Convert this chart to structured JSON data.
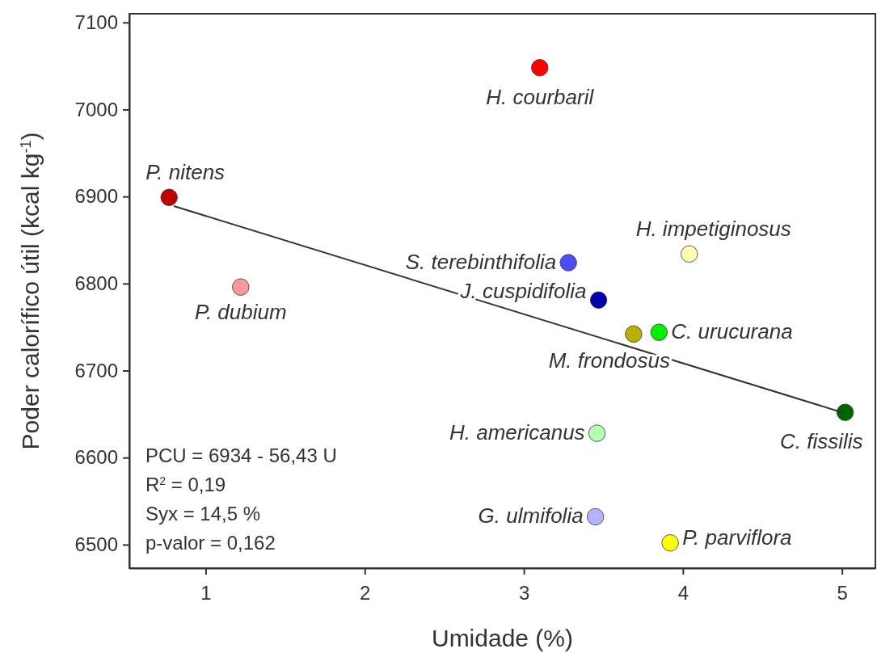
{
  "chart_data": {
    "type": "scatter",
    "xlabel": "Umidade (%)",
    "ylabel": "Poder calorífico útil (kcal kg$^{-1}$)",
    "xlim": [
      0.52,
      5.21
    ],
    "xticks": [
      1,
      2,
      3,
      4,
      5
    ],
    "ylim": [
      6473,
      7110
    ],
    "yticks": [
      6500,
      6600,
      6700,
      6800,
      6900,
      7000,
      7100
    ],
    "grid": false,
    "legend": false,
    "marker": "circle",
    "series": [
      {
        "name": "P. nitens",
        "color": "#c00000",
        "x": [
          0.77
        ],
        "values": [
          6899
        ]
      },
      {
        "name": "P. dubium",
        "color": "#ff9999",
        "x": [
          1.22
        ],
        "values": [
          6796
        ]
      },
      {
        "name": "H. courbaril",
        "color": "#ff0000",
        "x": [
          3.1
        ],
        "values": [
          7048
        ]
      },
      {
        "name": "S. terebinthifolia",
        "color": "#4d4dff",
        "x": [
          3.28
        ],
        "values": [
          6824
        ]
      },
      {
        "name": "J. cuspidifolia",
        "color": "#0000aa",
        "x": [
          3.47
        ],
        "values": [
          6781
        ]
      },
      {
        "name": "H. impetiginosus",
        "color": "#ffffb3",
        "x": [
          4.04
        ],
        "values": [
          6834
        ]
      },
      {
        "name": "M. frondosus",
        "color": "#b8b000",
        "x": [
          3.69
        ],
        "values": [
          6742
        ]
      },
      {
        "name": "C. urucurana",
        "color": "#00ee00",
        "x": [
          3.85
        ],
        "values": [
          6744
        ]
      },
      {
        "name": "C. fissilis",
        "color": "#006600",
        "x": [
          5.02
        ],
        "values": [
          6652
        ]
      },
      {
        "name": "H. americanus",
        "color": "#b3ffb3",
        "x": [
          3.46
        ],
        "values": [
          6628
        ]
      },
      {
        "name": "G. ulmifolia",
        "color": "#b3b3ff",
        "x": [
          3.45
        ],
        "values": [
          6532
        ]
      },
      {
        "name": "P. parviflora",
        "color": "#ffff00",
        "x": [
          3.92
        ],
        "values": [
          6502
        ]
      },
      {
        "type": "line",
        "color": "#333333",
        "marker": "none",
        "x": [
          0.8,
          5.0
        ],
        "values": [
          6889,
          6652
        ]
      }
    ],
    "annotations": [
      "PCU = 6934 - 56,43 U",
      "R$^{2}$ = 0,19",
      "Syx = 14,5 %",
      "p-valor = 0,162"
    ]
  }
}
